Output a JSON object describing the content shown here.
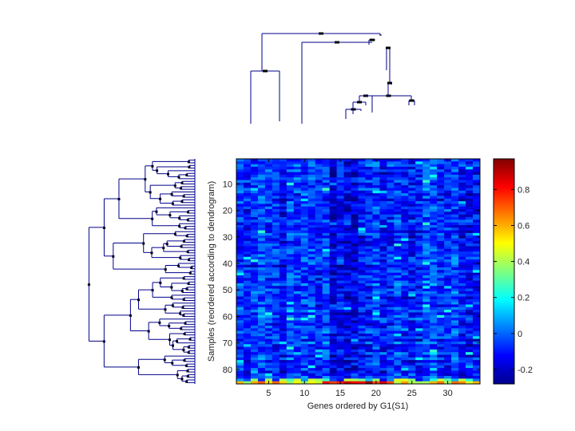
{
  "chart_data": {
    "type": "heatmap",
    "xlabel": "Genes ordered by G1(S1)",
    "ylabel": "Samples (reordered according to dendrogram)",
    "x_ticks": [
      "5",
      "10",
      "15",
      "20",
      "25",
      "30"
    ],
    "y_ticks": [
      "10",
      "20",
      "30",
      "40",
      "50",
      "60",
      "70",
      "80"
    ],
    "n_cols": 34,
    "n_rows": 85,
    "xlim": [
      0.5,
      34.5
    ],
    "ylim": [
      0.5,
      85.5
    ],
    "colorbar": {
      "colormap": "jet",
      "range": [
        -0.28,
        0.97
      ],
      "tick_values": [
        -0.2,
        0,
        0.2,
        0.4,
        0.6,
        0.8
      ],
      "tick_labels": [
        "-0.2",
        "0",
        "0.2",
        "0.4",
        "0.6",
        "0.8"
      ]
    },
    "value_summary": "Mostly values between -0.25 and 0.2 (blue); final sample row (85) high, up to about 0.95 (red) around genes 13-22",
    "dendrograms": [
      "genes (top)",
      "samples (left)"
    ]
  }
}
